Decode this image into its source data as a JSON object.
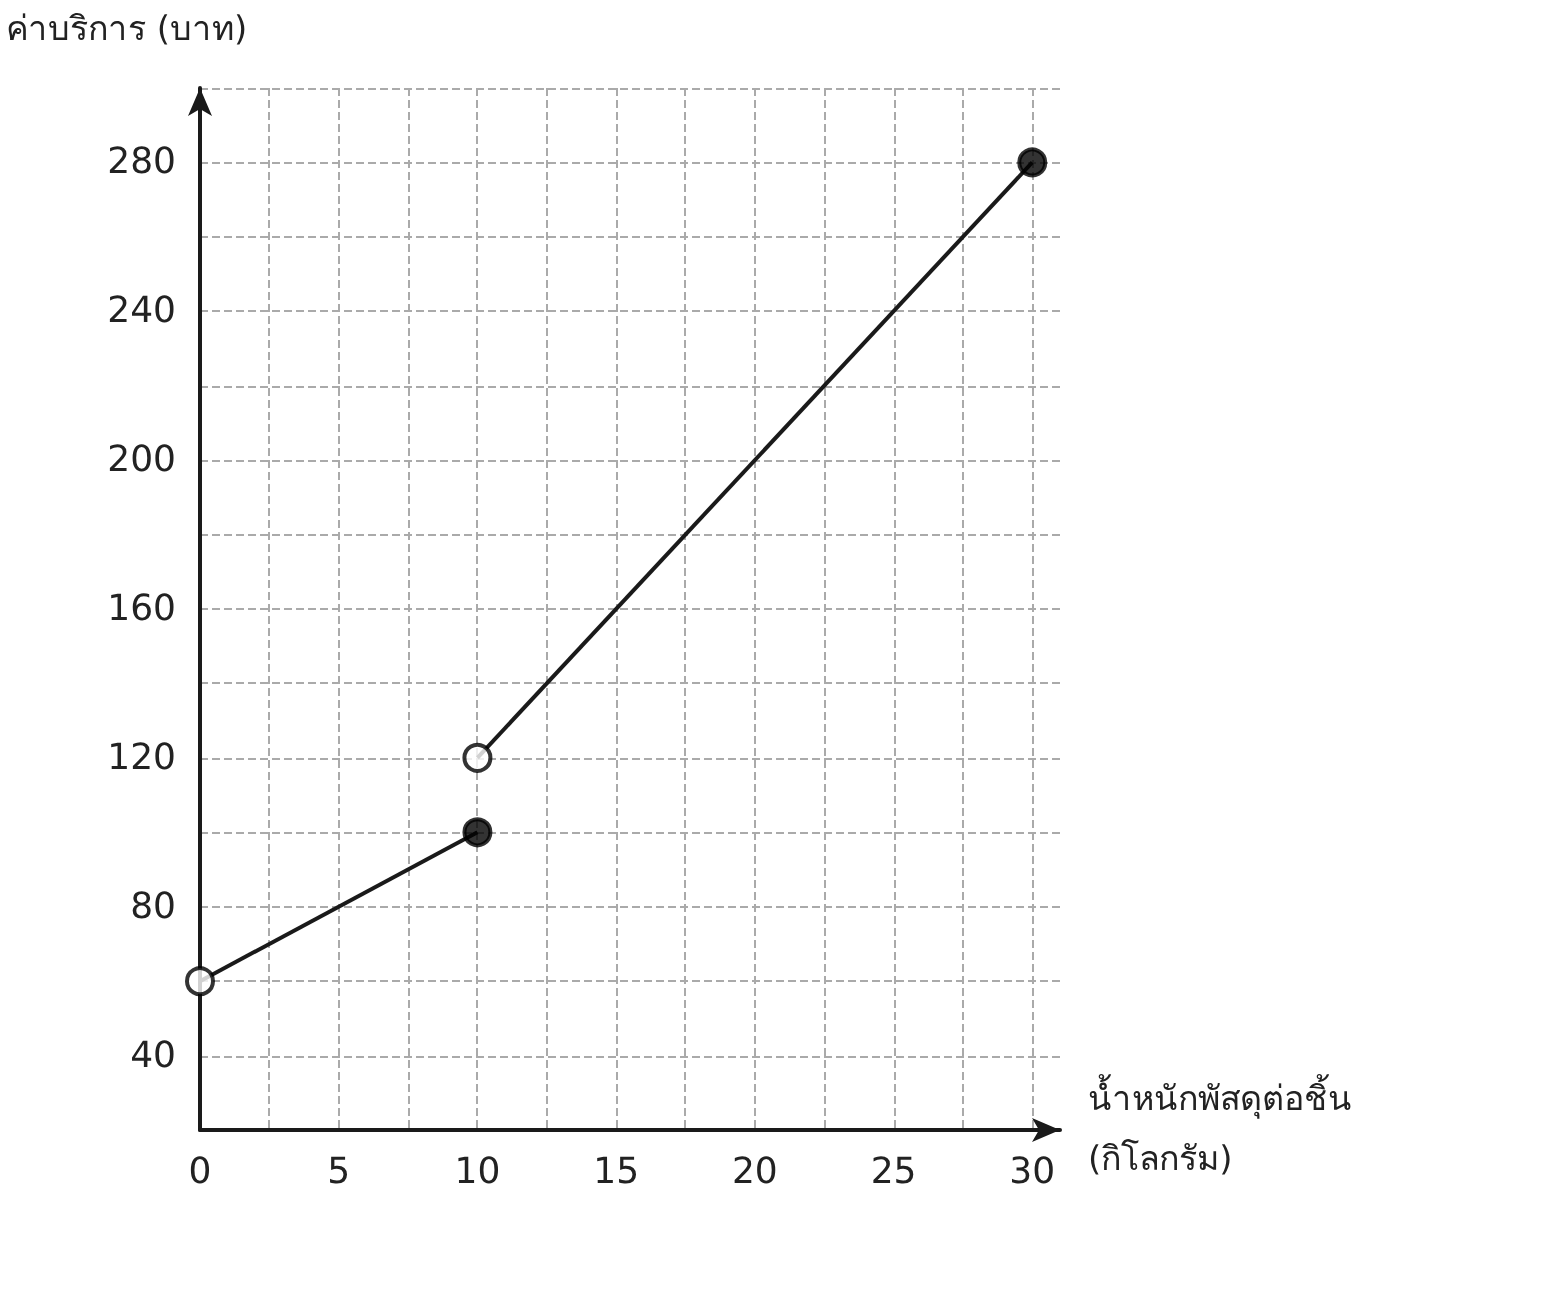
{
  "chart_data": {
    "type": "line",
    "xlabel": "น้ำหนักพัสดุต่อชิ้น (กิโลกรัม)",
    "ylabel": "ค่าบริการ (บาท)",
    "series": [
      {
        "color": "#1a1a1a",
        "x": [
          0,
          10
        ],
        "values": [
          60,
          100
        ],
        "marker": "none"
      },
      {
        "color": "#1a1a1a",
        "x": [
          10,
          30
        ],
        "values": [
          120,
          280
        ],
        "marker": "none"
      },
      {
        "type": "scatter",
        "color": "#000000",
        "x": [
          10,
          30
        ],
        "values": [
          100,
          280
        ],
        "marker": "circle"
      },
      {
        "type": "scatter",
        "color": "#ffffff",
        "x": [
          0,
          10
        ],
        "values": [
          60,
          120
        ],
        "marker": "circle"
      }
    ],
    "xlim": [
      0,
      31
    ],
    "ylim": [
      20,
      300
    ],
    "xticks": [
      0,
      {
        "value": 2.5,
        "label": null
      },
      5,
      {
        "value": 7.5,
        "label": null
      },
      10,
      {
        "value": 12.5,
        "label": null
      },
      15,
      {
        "value": 17.5,
        "label": null
      },
      20,
      {
        "value": 22.5,
        "label": null
      },
      25,
      {
        "value": 27.5,
        "label": null
      },
      30
    ],
    "yticks": [
      40,
      {
        "value": 60,
        "label": null
      },
      80,
      {
        "value": 100,
        "label": null
      },
      120,
      {
        "value": 140,
        "label": null
      },
      160,
      {
        "value": 180,
        "label": null
      },
      200,
      {
        "value": 220,
        "label": null
      },
      240,
      {
        "value": 260,
        "label": null
      },
      280,
      {
        "value": 300,
        "label": null
      }
    ],
    "grid": true
  }
}
